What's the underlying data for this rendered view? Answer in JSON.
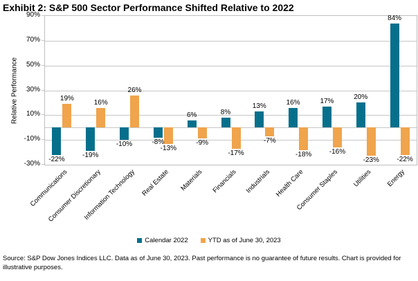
{
  "title": "Exhibit 2: S&P 500 Sector Performance Shifted Relative to 2022",
  "source_note": "Source: S&P Dow Jones Indices LLC. Data as of June 30, 2023. Past performance is no guarantee of future results. Chart is provided for illustrative purposes.",
  "chart_data": {
    "type": "bar",
    "title": "Exhibit 2: S&P 500 Sector Performance Shifted Relative to 2022",
    "xlabel": "",
    "ylabel": "Relative Performance",
    "ylim": [
      -30,
      90
    ],
    "yticks": [
      90,
      70,
      50,
      30,
      10,
      -10,
      -30
    ],
    "ytick_suffix": "%",
    "grid": true,
    "gridline_color": "#c6c6c6",
    "plot_border_color": "#bfbfbf",
    "legend_position": "bottom",
    "categories": [
      "Communications",
      "Consumer Discretionary",
      "Information Technology",
      "Real Estate",
      "Materials",
      "Financials",
      "Industrials",
      "Health Care",
      "Consumer Staples",
      "Utilities",
      "Energy"
    ],
    "series": [
      {
        "name": "Calendar 2022",
        "color": "#06708c",
        "values": [
          -22,
          -19,
          -10,
          -8,
          6,
          8,
          13,
          16,
          17,
          20,
          84
        ]
      },
      {
        "name": "YTD as of June 30, 2023",
        "color": "#f0a44c",
        "values": [
          19,
          16,
          26,
          -13,
          -9,
          -17,
          -7,
          -18,
          -16,
          -23,
          -22
        ]
      }
    ],
    "data_label_format": "value%"
  }
}
